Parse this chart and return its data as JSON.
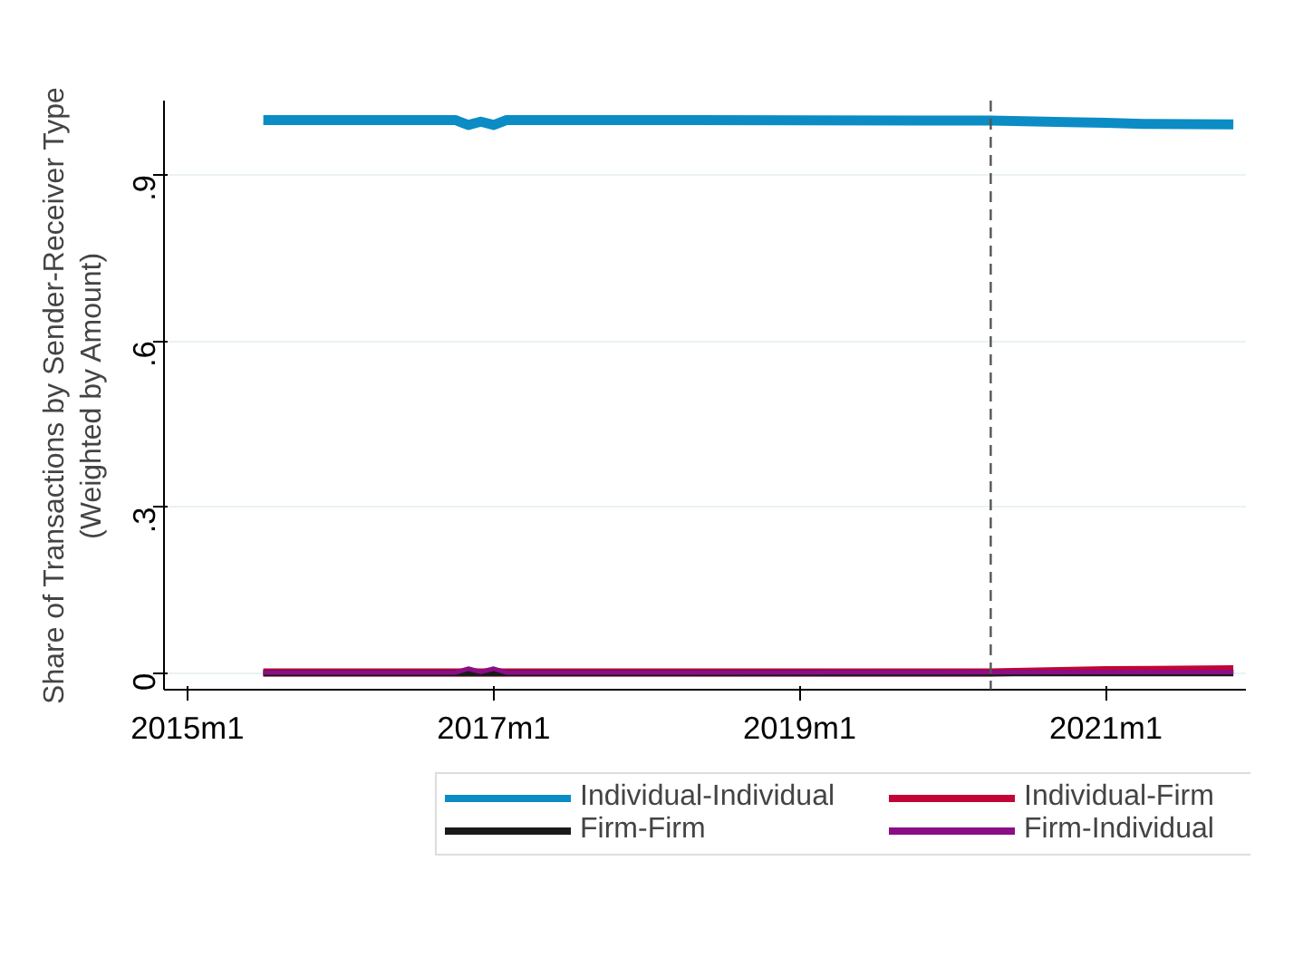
{
  "chart_data": {
    "type": "line",
    "ylabel": "Share of Transactions by Sender-Receiver Type\n(Weighted by Amount)",
    "xlim": [
      "2014-11-06",
      "2021-12-01"
    ],
    "xticks": [
      {
        "value": "2015-01",
        "label": "2015m1"
      },
      {
        "value": "2017-01",
        "label": "2017m1"
      },
      {
        "value": "2019-01",
        "label": "2019m1"
      },
      {
        "value": "2021-01",
        "label": "2021m1"
      }
    ],
    "ylim": [
      -0.03,
      1.034
    ],
    "yticks": [
      {
        "value": 0,
        "label": "0"
      },
      {
        "value": 0.3,
        "label": ".3"
      },
      {
        "value": 0.6,
        "label": ".6"
      },
      {
        "value": 0.9,
        "label": ".9"
      }
    ],
    "grid": "y",
    "legend": "bottom",
    "line_style": "solid",
    "ref_lines": [
      {
        "axis": "x",
        "value": "2020-04",
        "line_style": "dashed",
        "color": "#555555"
      }
    ],
    "series": [
      {
        "name": "Individual-Individual",
        "color": "#0c8cc4",
        "x": [
          "2015-07",
          "2016-10",
          "2016-11",
          "2016-12",
          "2017-01",
          "2017-02",
          "2020-04",
          "2020-10",
          "2021-01",
          "2021-04",
          "2021-11"
        ],
        "values": [
          0.999,
          0.999,
          0.99,
          0.996,
          0.99,
          0.999,
          0.998,
          0.995,
          0.994,
          0.992,
          0.991
        ]
      },
      {
        "name": "Individual-Firm",
        "color": "#c10534",
        "x": [
          "2015-07",
          "2020-04",
          "2021-01",
          "2021-11"
        ],
        "values": [
          0.001,
          0.001,
          0.005,
          0.007
        ]
      },
      {
        "name": "Firm-Firm",
        "color": "#1a1a1a",
        "x": [
          "2015-07",
          "2021-11"
        ],
        "values": [
          0.0,
          0.0
        ]
      },
      {
        "name": "Firm-Individual",
        "color": "#8b0e87",
        "x": [
          "2015-07",
          "2016-10",
          "2016-11",
          "2016-12",
          "2017-01",
          "2017-02",
          "2021-11"
        ],
        "values": [
          0.001,
          0.001,
          0.008,
          0.002,
          0.008,
          0.001,
          0.002
        ]
      }
    ]
  }
}
